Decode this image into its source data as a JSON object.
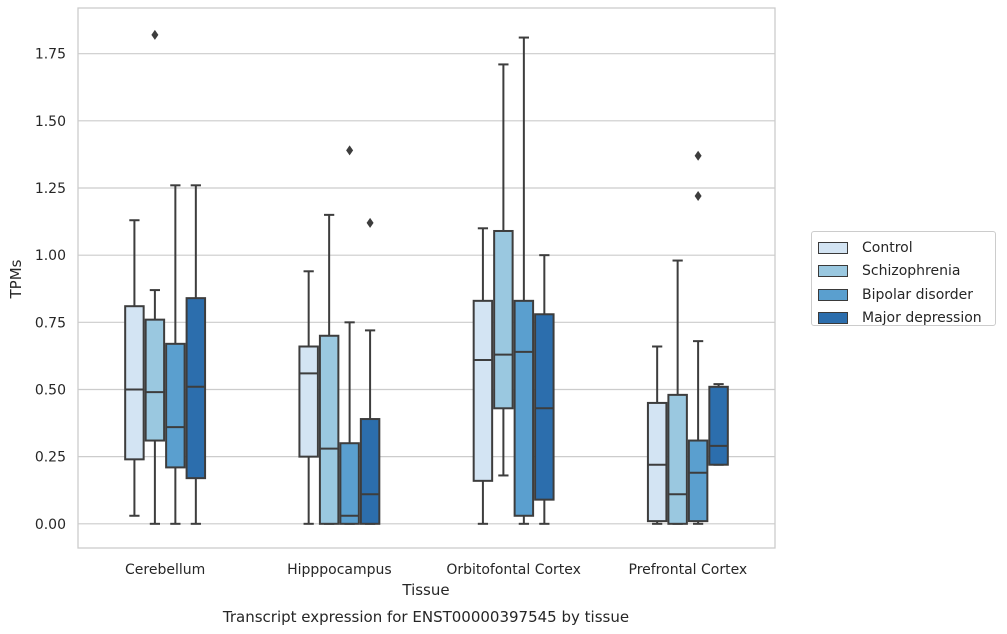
{
  "chart_data": {
    "type": "box",
    "title": "Transcript expression for ENST00000397545 by tissue",
    "xlabel": "Tissue",
    "ylabel": "TPMs",
    "ylim": [
      -0.09,
      1.92
    ],
    "yticks": [
      "0.00",
      "0.25",
      "0.50",
      "0.75",
      "1.00",
      "1.25",
      "1.50",
      "1.75"
    ],
    "yticks_values": [
      0,
      0.25,
      0.5,
      0.75,
      1.0,
      1.25,
      1.5,
      1.75
    ],
    "grid": true,
    "legend_position": "right",
    "categories": [
      "Cerebellum",
      "Hipppocampus",
      "Orbitofontal Cortex",
      "Prefrontal Cortex"
    ],
    "series": [
      {
        "name": "Control",
        "color": "#d3e4f3",
        "boxes": [
          {
            "whisker_low": 0.03,
            "q1": 0.24,
            "median": 0.5,
            "q3": 0.81,
            "whisker_high": 1.13,
            "outliers": []
          },
          {
            "whisker_low": 0.0,
            "q1": 0.25,
            "median": 0.56,
            "q3": 0.66,
            "whisker_high": 0.94,
            "outliers": []
          },
          {
            "whisker_low": 0.0,
            "q1": 0.16,
            "median": 0.61,
            "q3": 0.83,
            "whisker_high": 1.1,
            "outliers": []
          },
          {
            "whisker_low": 0.0,
            "q1": 0.01,
            "median": 0.22,
            "q3": 0.45,
            "whisker_high": 0.66,
            "outliers": []
          }
        ]
      },
      {
        "name": "Schizophrenia",
        "color": "#9ac8e0",
        "boxes": [
          {
            "whisker_low": 0.0,
            "q1": 0.31,
            "median": 0.49,
            "q3": 0.76,
            "whisker_high": 0.87,
            "outliers": [
              1.82
            ]
          },
          {
            "whisker_low": 0.0,
            "q1": 0.0,
            "median": 0.28,
            "q3": 0.7,
            "whisker_high": 1.15,
            "outliers": []
          },
          {
            "whisker_low": 0.18,
            "q1": 0.43,
            "median": 0.63,
            "q3": 1.09,
            "whisker_high": 1.71,
            "outliers": []
          },
          {
            "whisker_low": 0.0,
            "q1": 0.0,
            "median": 0.11,
            "q3": 0.48,
            "whisker_high": 0.98,
            "outliers": []
          }
        ]
      },
      {
        "name": "Bipolar disorder",
        "color": "#5a9fcf",
        "boxes": [
          {
            "whisker_low": 0.0,
            "q1": 0.21,
            "median": 0.36,
            "q3": 0.67,
            "whisker_high": 1.26,
            "outliers": []
          },
          {
            "whisker_low": 0.0,
            "q1": 0.0,
            "median": 0.03,
            "q3": 0.3,
            "whisker_high": 0.75,
            "outliers": [
              1.39
            ]
          },
          {
            "whisker_low": 0.0,
            "q1": 0.03,
            "median": 0.64,
            "q3": 0.83,
            "whisker_high": 1.81,
            "outliers": []
          },
          {
            "whisker_low": 0.0,
            "q1": 0.01,
            "median": 0.19,
            "q3": 0.31,
            "whisker_high": 0.68,
            "outliers": [
              1.37,
              1.22
            ]
          }
        ]
      },
      {
        "name": "Major depression",
        "color": "#2c6ead",
        "boxes": [
          {
            "whisker_low": 0.0,
            "q1": 0.17,
            "median": 0.51,
            "q3": 0.84,
            "whisker_high": 1.26,
            "outliers": []
          },
          {
            "whisker_low": 0.0,
            "q1": 0.0,
            "median": 0.11,
            "q3": 0.39,
            "whisker_high": 0.72,
            "outliers": [
              1.12
            ]
          },
          {
            "whisker_low": 0.0,
            "q1": 0.09,
            "median": 0.43,
            "q3": 0.78,
            "whisker_high": 1.0,
            "outliers": []
          },
          {
            "whisker_low": 0.22,
            "q1": 0.22,
            "median": 0.29,
            "q3": 0.51,
            "whisker_high": 0.52,
            "outliers": []
          }
        ]
      }
    ]
  }
}
